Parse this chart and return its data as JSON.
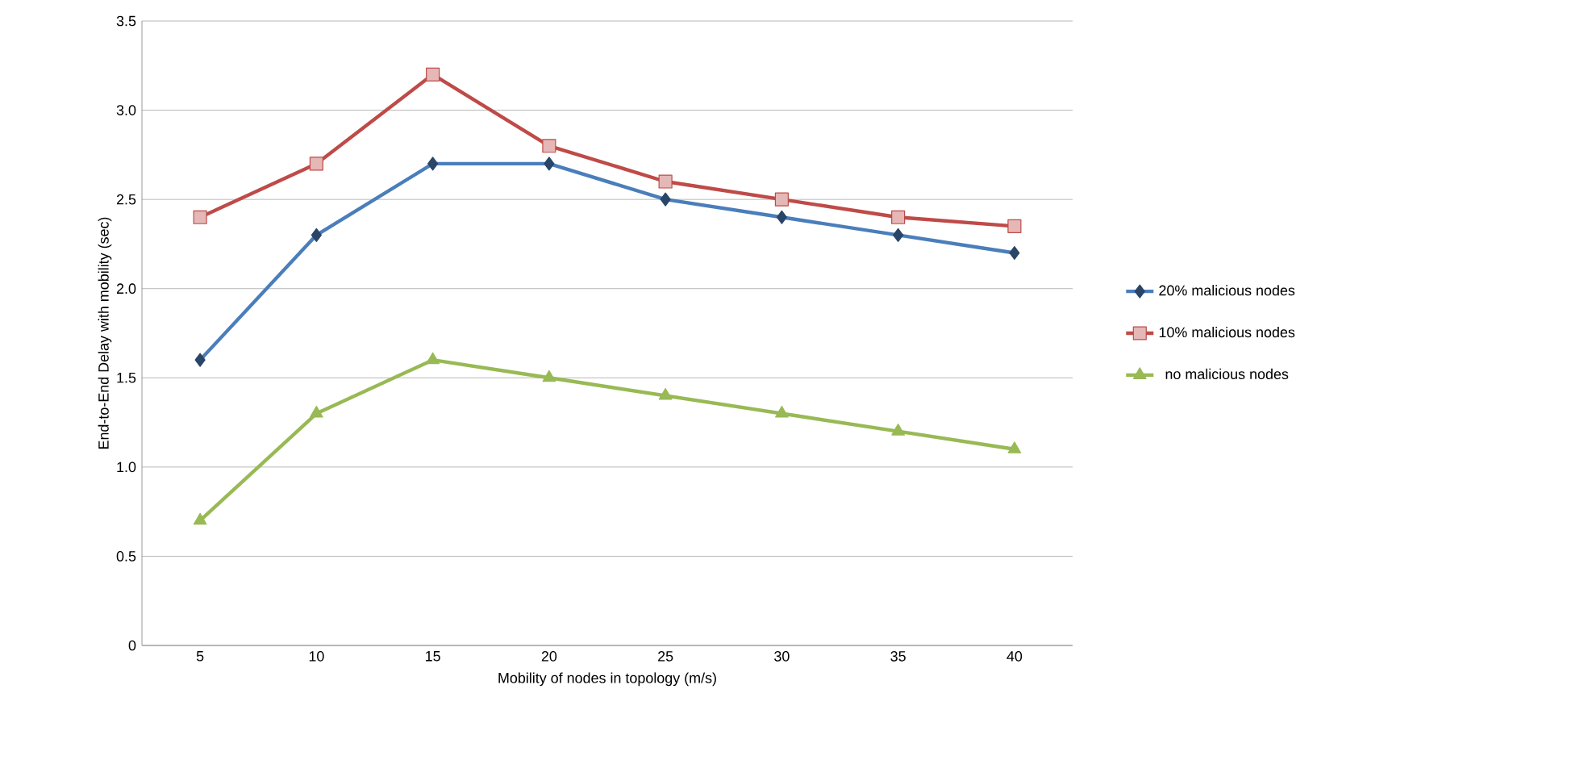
{
  "chart_data": {
    "type": "line",
    "xlabel": "Mobility of nodes in topology (m/s)",
    "ylabel": "End-to-End Delay with mobility  (sec)",
    "categories": [
      "5",
      "10",
      "15",
      "20",
      "25",
      "30",
      "35",
      "40"
    ],
    "series": [
      {
        "name": "20% malicious nodes",
        "color": "#4a7ebb",
        "marker": "diamond",
        "values": [
          1.6,
          2.3,
          2.7,
          2.7,
          2.5,
          2.4,
          2.3,
          2.2
        ]
      },
      {
        "name": "10% malicious nodes",
        "color": "#be4b48",
        "marker": "square",
        "values": [
          2.4,
          2.7,
          3.2,
          2.8,
          2.6,
          2.5,
          2.4,
          2.35
        ]
      },
      {
        "name": "no malicious nodes",
        "color": "#98b954",
        "marker": "triangle",
        "values": [
          0.7,
          1.3,
          1.6,
          1.5,
          1.4,
          1.3,
          1.2,
          1.1
        ]
      }
    ],
    "ylim": [
      0,
      3.5
    ],
    "yticks": [
      0,
      {
        "value": 0.5,
        "label": "0.5"
      },
      {
        "value": 1,
        "label": "1.0"
      },
      {
        "value": 1.5,
        "label": "1.5"
      },
      {
        "value": 2,
        "label": "2.0"
      },
      {
        "value": 2.5,
        "label": "2.5"
      },
      {
        "value": 3,
        "label": "3.0"
      },
      {
        "value": 3.5,
        "label": "3.5"
      }
    ],
    "grid": "y",
    "legend": "right"
  }
}
